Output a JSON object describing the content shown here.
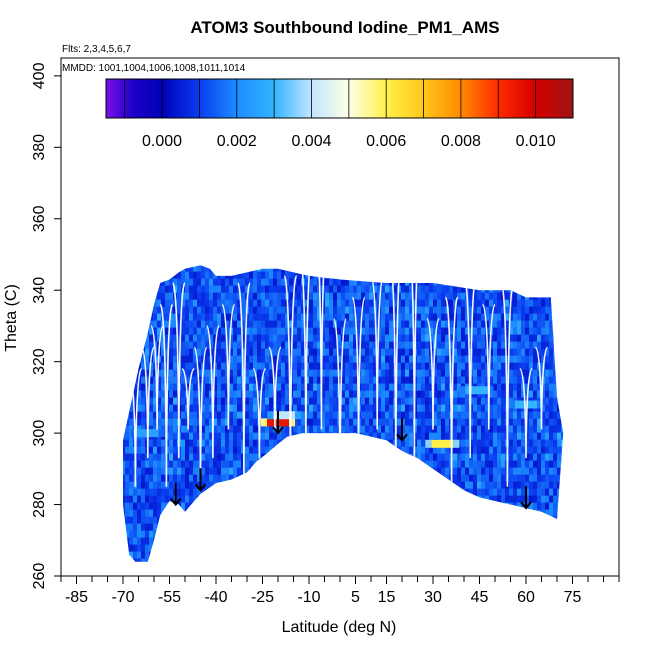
{
  "chart_data": {
    "type": "heatmap",
    "title": "ATOM3 Southbound Iodine_PM1_AMS",
    "annotations": [
      "Flts: 2,3,4,5,6,7",
      "MMDD: 1001,1004,1006,1008,1011,1014"
    ],
    "xlabel": "Latitude (deg N)",
    "ylabel": "Theta (C)",
    "xlim": [
      -90,
      90
    ],
    "ylim": [
      260,
      405
    ],
    "xticks": [
      -85,
      -70,
      -55,
      -40,
      -25,
      -10,
      5,
      15,
      30,
      45,
      60,
      75
    ],
    "xtick_labels": [
      "-85",
      "-70",
      "-55",
      "-40",
      "-25",
      "-10",
      "5",
      "15",
      "30",
      "45",
      "60",
      "75"
    ],
    "x_minor_step": 5,
    "yticks": [
      260,
      280,
      300,
      320,
      340,
      360,
      380,
      400
    ],
    "ytick_labels": [
      "260",
      "280",
      "300",
      "320",
      "340",
      "360",
      "380",
      "400"
    ],
    "colorbar": {
      "min": -0.0015,
      "max": 0.011,
      "ticks": [
        0.0,
        0.002,
        0.004,
        0.006,
        0.008,
        0.01
      ],
      "tick_labels": [
        "0.000",
        "0.002",
        "0.004",
        "0.006",
        "0.008",
        "0.010"
      ],
      "stops": [
        {
          "v": -0.0015,
          "c": "#7a12e8"
        },
        {
          "v": -0.0008,
          "c": "#1f00c8"
        },
        {
          "v": 0.0,
          "c": "#0000b8"
        },
        {
          "v": 0.001,
          "c": "#0a3cf0"
        },
        {
          "v": 0.002,
          "c": "#1c8cff"
        },
        {
          "v": 0.003,
          "c": "#34b4ff"
        },
        {
          "v": 0.004,
          "c": "#bfe6ff"
        },
        {
          "v": 0.005,
          "c": "#ffffe6"
        },
        {
          "v": 0.006,
          "c": "#fff04a"
        },
        {
          "v": 0.007,
          "c": "#ffc61a"
        },
        {
          "v": 0.008,
          "c": "#ff8a00"
        },
        {
          "v": 0.009,
          "c": "#ff2a00"
        },
        {
          "v": 0.01,
          "c": "#d40000"
        },
        {
          "v": 0.011,
          "c": "#a01414"
        }
      ]
    },
    "domain_top": [
      [
        -70,
        298
      ],
      [
        -68,
        306
      ],
      [
        -65,
        318
      ],
      [
        -62,
        328
      ],
      [
        -60,
        336
      ],
      [
        -58,
        342
      ],
      [
        -55,
        343
      ],
      [
        -52,
        345
      ],
      [
        -50,
        346
      ],
      [
        -45,
        347
      ],
      [
        -42,
        346
      ],
      [
        -40,
        344
      ],
      [
        -35,
        344
      ],
      [
        -30,
        345
      ],
      [
        -25,
        346
      ],
      [
        -20,
        346
      ],
      [
        -15,
        345
      ],
      [
        -10,
        344
      ],
      [
        0,
        343
      ],
      [
        15,
        342
      ],
      [
        30,
        342
      ],
      [
        45,
        340
      ],
      [
        55,
        340
      ],
      [
        60,
        338
      ],
      [
        65,
        338
      ],
      [
        68,
        338
      ],
      [
        70,
        310
      ],
      [
        72,
        300
      ]
    ],
    "domain_bottom": [
      [
        -70,
        280
      ],
      [
        -68,
        266
      ],
      [
        -66,
        264
      ],
      [
        -62,
        264
      ],
      [
        -60,
        270
      ],
      [
        -58,
        277
      ],
      [
        -55,
        281
      ],
      [
        -52,
        280
      ],
      [
        -50,
        278
      ],
      [
        -48,
        280
      ],
      [
        -45,
        283
      ],
      [
        -40,
        286
      ],
      [
        -35,
        287
      ],
      [
        -30,
        289
      ],
      [
        -27,
        292
      ],
      [
        -24,
        294
      ],
      [
        -20,
        297
      ],
      [
        -17,
        299
      ],
      [
        -12,
        300
      ],
      [
        -5,
        300
      ],
      [
        5,
        300
      ],
      [
        10,
        299
      ],
      [
        15,
        298
      ],
      [
        20,
        295
      ],
      [
        25,
        293
      ],
      [
        30,
        290
      ],
      [
        35,
        287
      ],
      [
        40,
        284
      ],
      [
        45,
        282
      ],
      [
        50,
        281
      ],
      [
        55,
        280
      ],
      [
        60,
        279
      ],
      [
        65,
        278
      ],
      [
        70,
        276
      ]
    ],
    "hotspots": [
      {
        "lat": -20,
        "theta": 303,
        "value": 0.0095
      },
      {
        "lat": -18,
        "theta": 305,
        "value": 0.004
      },
      {
        "lat": 33,
        "theta": 297,
        "value": 0.006
      },
      {
        "lat": 44,
        "theta": 312,
        "value": 0.003
      },
      {
        "lat": 60,
        "theta": 308,
        "value": 0.003
      },
      {
        "lat": -62,
        "theta": 300,
        "value": 0.0025
      }
    ],
    "arrows": [
      {
        "lat": -53,
        "theta": 280
      },
      {
        "lat": -45,
        "theta": 284
      },
      {
        "lat": -20,
        "theta": 300
      },
      {
        "lat": 20,
        "theta": 298
      },
      {
        "lat": 60,
        "theta": 279
      }
    ]
  }
}
